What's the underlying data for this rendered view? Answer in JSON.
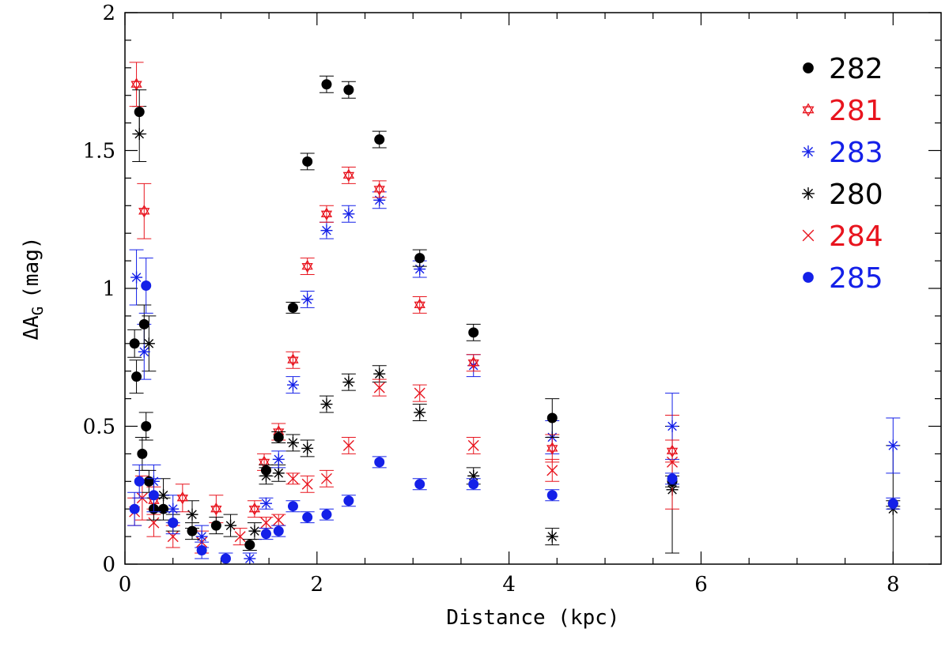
{
  "chart_data": {
    "type": "scatter",
    "title": "",
    "xlabel": "Distance (kpc)",
    "ylabel_main": "ΔA",
    "ylabel_sub": "G",
    "ylabel_unit": "(mag)",
    "xlim": [
      0,
      8.5
    ],
    "ylim": [
      0,
      2
    ],
    "xticks": [
      0,
      2,
      4,
      6,
      8
    ],
    "xtick_labels": [
      "0",
      "2",
      "4",
      "6",
      "8"
    ],
    "yticks": [
      0,
      0.5,
      1,
      1.5,
      2
    ],
    "ytick_labels": [
      "0",
      "0.5",
      "1",
      "1.5",
      "2"
    ],
    "grid": false,
    "legend_position": "top-right",
    "series": [
      {
        "name": "282",
        "marker": "filled-circle",
        "color": "#000000",
        "points": [
          [
            0.1,
            0.8,
            0.05
          ],
          [
            0.12,
            0.68,
            0.06
          ],
          [
            0.15,
            1.64,
            0.08
          ],
          [
            0.18,
            0.4,
            0.06
          ],
          [
            0.2,
            0.87,
            0.07
          ],
          [
            0.22,
            0.5,
            0.05
          ],
          [
            0.25,
            0.3,
            0.04
          ],
          [
            0.3,
            0.2,
            0.04
          ],
          [
            0.4,
            0.2,
            0.04
          ],
          [
            0.5,
            0.15,
            0.03
          ],
          [
            0.7,
            0.12,
            0.03
          ],
          [
            0.95,
            0.14,
            0.03
          ],
          [
            1.3,
            0.07,
            0.02
          ],
          [
            1.47,
            0.34,
            0.02
          ],
          [
            1.6,
            0.46,
            0.02
          ],
          [
            1.75,
            0.93,
            0.02
          ],
          [
            1.9,
            1.46,
            0.03
          ],
          [
            2.1,
            1.74,
            0.03
          ],
          [
            2.33,
            1.72,
            0.03
          ],
          [
            2.65,
            1.54,
            0.03
          ],
          [
            3.07,
            1.11,
            0.03
          ],
          [
            3.63,
            0.84,
            0.03
          ],
          [
            4.45,
            0.53,
            0.07
          ],
          [
            5.7,
            0.3,
            0.02
          ],
          [
            8.0,
            0.22,
            0.01
          ]
        ]
      },
      {
        "name": "281",
        "marker": "hexagram",
        "color": "#e8141e",
        "points": [
          [
            0.12,
            1.74,
            0.08
          ],
          [
            0.2,
            1.28,
            0.1
          ],
          [
            0.3,
            0.23,
            0.05
          ],
          [
            0.6,
            0.24,
            0.05
          ],
          [
            0.95,
            0.2,
            0.05
          ],
          [
            1.35,
            0.2,
            0.03
          ],
          [
            1.45,
            0.37,
            0.03
          ],
          [
            1.6,
            0.48,
            0.03
          ],
          [
            1.75,
            0.74,
            0.03
          ],
          [
            1.9,
            1.08,
            0.03
          ],
          [
            2.1,
            1.27,
            0.03
          ],
          [
            2.33,
            1.41,
            0.03
          ],
          [
            2.65,
            1.36,
            0.03
          ],
          [
            3.07,
            0.94,
            0.03
          ],
          [
            3.63,
            0.73,
            0.03
          ],
          [
            4.45,
            0.42,
            0.05
          ],
          [
            5.7,
            0.41,
            0.04
          ]
        ]
      },
      {
        "name": "283",
        "marker": "asterisk",
        "color": "#1420e8",
        "points": [
          [
            0.12,
            1.04,
            0.1
          ],
          [
            0.2,
            0.77,
            0.1
          ],
          [
            0.3,
            0.3,
            0.06
          ],
          [
            0.5,
            0.2,
            0.05
          ],
          [
            0.8,
            0.1,
            0.04
          ],
          [
            1.3,
            0.02,
            0.02
          ],
          [
            1.47,
            0.22,
            0.02
          ],
          [
            1.6,
            0.38,
            0.03
          ],
          [
            1.75,
            0.65,
            0.03
          ],
          [
            1.9,
            0.96,
            0.03
          ],
          [
            2.1,
            1.21,
            0.03
          ],
          [
            2.33,
            1.27,
            0.03
          ],
          [
            2.65,
            1.32,
            0.03
          ],
          [
            3.07,
            1.07,
            0.03
          ],
          [
            3.63,
            0.72,
            0.04
          ],
          [
            4.45,
            0.46,
            0.06
          ],
          [
            5.7,
            0.5,
            0.12
          ],
          [
            8.0,
            0.43,
            0.1
          ]
        ]
      },
      {
        "name": "280",
        "marker": "asterisk",
        "color": "#000000",
        "points": [
          [
            0.15,
            1.56,
            0.1
          ],
          [
            0.25,
            0.8,
            0.1
          ],
          [
            0.4,
            0.25,
            0.06
          ],
          [
            0.7,
            0.18,
            0.05
          ],
          [
            1.1,
            0.14,
            0.04
          ],
          [
            1.35,
            0.12,
            0.03
          ],
          [
            1.47,
            0.32,
            0.03
          ],
          [
            1.6,
            0.33,
            0.03
          ],
          [
            1.75,
            0.44,
            0.03
          ],
          [
            1.9,
            0.42,
            0.03
          ],
          [
            2.1,
            0.58,
            0.03
          ],
          [
            2.33,
            0.66,
            0.03
          ],
          [
            2.65,
            0.69,
            0.03
          ],
          [
            3.07,
            0.55,
            0.03
          ],
          [
            3.63,
            0.32,
            0.03
          ],
          [
            4.45,
            0.1,
            0.03
          ],
          [
            5.7,
            0.27,
            0.23
          ],
          [
            8.0,
            0.2,
            0.23
          ]
        ]
      },
      {
        "name": "284",
        "marker": "cross",
        "color": "#e8141e",
        "points": [
          [
            0.1,
            0.19,
            0.05
          ],
          [
            0.18,
            0.24,
            0.08
          ],
          [
            0.3,
            0.15,
            0.05
          ],
          [
            0.5,
            0.1,
            0.04
          ],
          [
            0.8,
            0.08,
            0.04
          ],
          [
            1.2,
            0.1,
            0.03
          ],
          [
            1.47,
            0.15,
            0.02
          ],
          [
            1.6,
            0.16,
            0.02
          ],
          [
            1.75,
            0.31,
            0.02
          ],
          [
            1.9,
            0.29,
            0.03
          ],
          [
            2.1,
            0.31,
            0.03
          ],
          [
            2.33,
            0.43,
            0.03
          ],
          [
            2.65,
            0.64,
            0.03
          ],
          [
            3.07,
            0.62,
            0.03
          ],
          [
            3.63,
            0.43,
            0.03
          ],
          [
            4.45,
            0.34,
            0.04
          ],
          [
            5.7,
            0.37,
            0.17
          ]
        ]
      },
      {
        "name": "285",
        "marker": "filled-circle",
        "color": "#1420e8",
        "points": [
          [
            0.1,
            0.2,
            0.06
          ],
          [
            0.15,
            0.3,
            0.06
          ],
          [
            0.22,
            1.01,
            0.1
          ],
          [
            0.3,
            0.25,
            0.06
          ],
          [
            0.5,
            0.15,
            0.04
          ],
          [
            0.8,
            0.05,
            0.03
          ],
          [
            1.05,
            0.02,
            0.02
          ],
          [
            1.47,
            0.11,
            0.02
          ],
          [
            1.6,
            0.12,
            0.02
          ],
          [
            1.75,
            0.21,
            0.02
          ],
          [
            1.9,
            0.17,
            0.02
          ],
          [
            2.1,
            0.18,
            0.02
          ],
          [
            2.33,
            0.23,
            0.02
          ],
          [
            2.65,
            0.37,
            0.02
          ],
          [
            3.07,
            0.29,
            0.02
          ],
          [
            3.63,
            0.29,
            0.02
          ],
          [
            4.45,
            0.25,
            0.02
          ],
          [
            5.7,
            0.31,
            0.02
          ],
          [
            8.0,
            0.22,
            0.02
          ]
        ]
      }
    ]
  }
}
